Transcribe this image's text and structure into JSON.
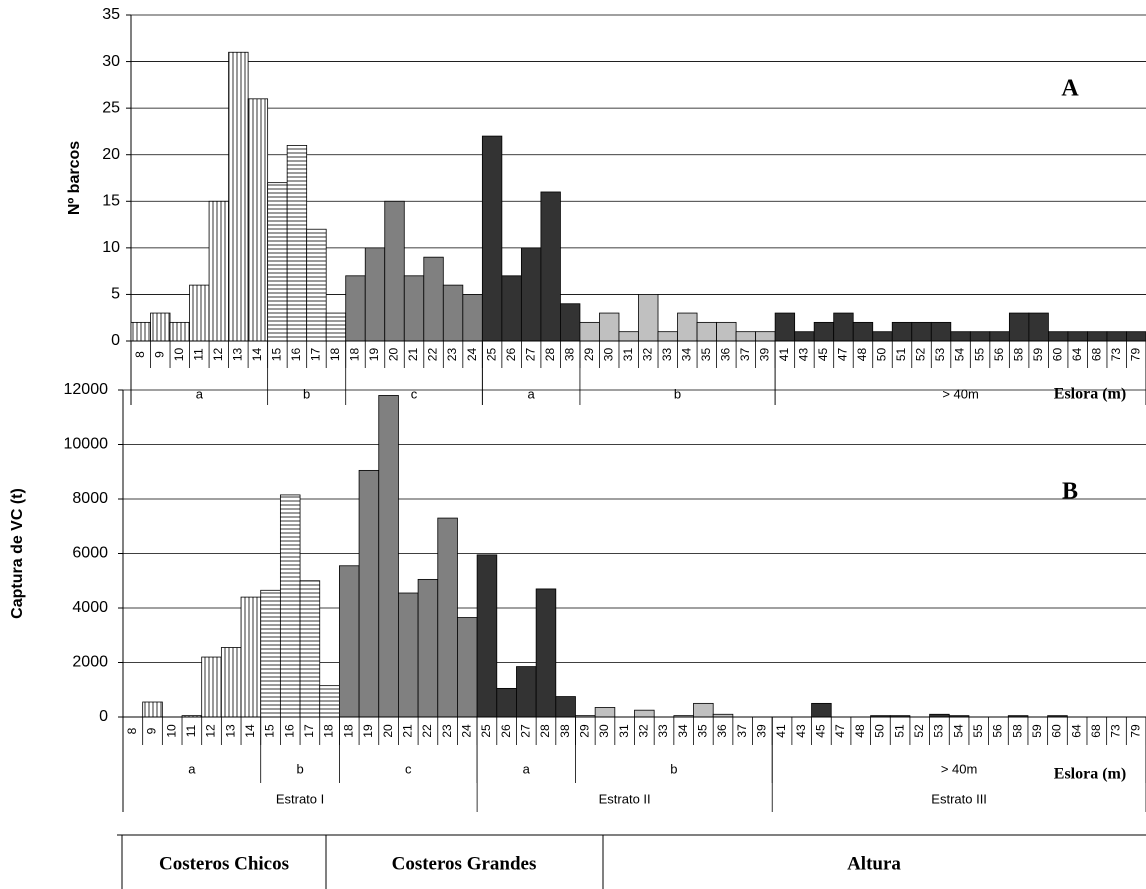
{
  "chart_data": [
    {
      "type": "bar",
      "panel": "A",
      "ylabel": "Nº barcos",
      "xlabel": "Eslora (m)",
      "ylim": [
        0,
        35
      ],
      "yticks": [
        0,
        5,
        10,
        15,
        20,
        25,
        30,
        35
      ],
      "grid": true,
      "strata": [
        {
          "groups": [
            {
              "name": "a",
              "color": "#ffffff",
              "hatch": "vertical",
              "categories": [
                "8",
                "9",
                "10",
                "11",
                "12",
                "13",
                "14"
              ],
              "values": [
                2,
                3,
                2,
                6,
                15,
                31,
                26
              ]
            },
            {
              "name": "b",
              "color": "#ffffff",
              "hatch": "horizontal",
              "categories": [
                "15",
                "16",
                "17",
                "18"
              ],
              "values": [
                17,
                21,
                12,
                3
              ]
            },
            {
              "name": "c",
              "color": "#808080",
              "categories": [
                "18",
                "19",
                "20",
                "21",
                "22",
                "23",
                "24"
              ],
              "values": [
                7,
                10,
                15,
                7,
                9,
                6,
                5
              ]
            }
          ]
        },
        {
          "groups": [
            {
              "name": "a",
              "color": "#333333",
              "categories": [
                "25",
                "26",
                "27",
                "28",
                "38"
              ],
              "values": [
                22,
                7,
                10,
                16,
                4
              ]
            },
            {
              "name": "b",
              "color": "#c0c0c0",
              "categories": [
                "29",
                "30",
                "31",
                "32",
                "33",
                "34",
                "35",
                "36",
                "37",
                "39"
              ],
              "values": [
                2,
                3,
                1,
                5,
                1,
                3,
                2,
                2,
                1,
                1
              ]
            }
          ]
        },
        {
          "groups": [
            {
              "name": "> 40m",
              "color": "#333333",
              "categories": [
                "41",
                "43",
                "45",
                "47",
                "48",
                "50",
                "51",
                "52",
                "53",
                "54",
                "55",
                "56",
                "58",
                "59",
                "60",
                "64",
                "68",
                "73",
                "79"
              ],
              "values": [
                3,
                1,
                2,
                3,
                2,
                1,
                2,
                2,
                2,
                1,
                1,
                1,
                3,
                3,
                1,
                1,
                1,
                1,
                1
              ]
            }
          ]
        }
      ]
    },
    {
      "type": "bar",
      "panel": "B",
      "ylabel": "Captura de VC (t)",
      "xlabel": "Eslora (m)",
      "ylim": [
        0,
        12000
      ],
      "yticks": [
        0,
        2000,
        4000,
        6000,
        8000,
        10000,
        12000
      ],
      "grid": true,
      "strata": [
        {
          "label": "Estrato I",
          "groups": [
            {
              "name": "a",
              "color": "#ffffff",
              "hatch": "vertical",
              "categories": [
                "8",
                "9",
                "10",
                "11",
                "12",
                "13",
                "14"
              ],
              "values": [
                0,
                550,
                0,
                50,
                2200,
                2550,
                4400
              ]
            },
            {
              "name": "b",
              "color": "#ffffff",
              "hatch": "horizontal",
              "categories": [
                "15",
                "16",
                "17",
                "18"
              ],
              "values": [
                4650,
                8150,
                5000,
                1150
              ]
            },
            {
              "name": "c",
              "color": "#808080",
              "categories": [
                "18",
                "19",
                "20",
                "21",
                "22",
                "23",
                "24"
              ],
              "values": [
                5550,
                9050,
                11800,
                4550,
                5050,
                7300,
                3650
              ]
            }
          ]
        },
        {
          "label": "Estrato II",
          "groups": [
            {
              "name": "a",
              "color": "#333333",
              "categories": [
                "25",
                "26",
                "27",
                "28",
                "38"
              ],
              "values": [
                5950,
                1050,
                1850,
                4700,
                750
              ]
            },
            {
              "name": "b",
              "color": "#c0c0c0",
              "categories": [
                "29",
                "30",
                "31",
                "32",
                "33",
                "34",
                "35",
                "36",
                "37",
                "39"
              ],
              "values": [
                50,
                350,
                0,
                250,
                0,
                50,
                500,
                100,
                0,
                0
              ]
            }
          ]
        },
        {
          "label": "Estrato III",
          "groups": [
            {
              "name": "> 40m",
              "color": "#333333",
              "categories": [
                "41",
                "43",
                "45",
                "47",
                "48",
                "50",
                "51",
                "52",
                "53",
                "54",
                "55",
                "56",
                "58",
                "59",
                "60",
                "64",
                "68",
                "73",
                "79"
              ],
              "values": [
                0,
                0,
                500,
                0,
                0,
                50,
                50,
                0,
                100,
                50,
                0,
                0,
                50,
                0,
                50,
                0,
                0,
                0,
                0
              ]
            }
          ]
        }
      ]
    }
  ],
  "footer": [
    "Costeros Chicos",
    "Costeros Grandes",
    "Altura"
  ]
}
